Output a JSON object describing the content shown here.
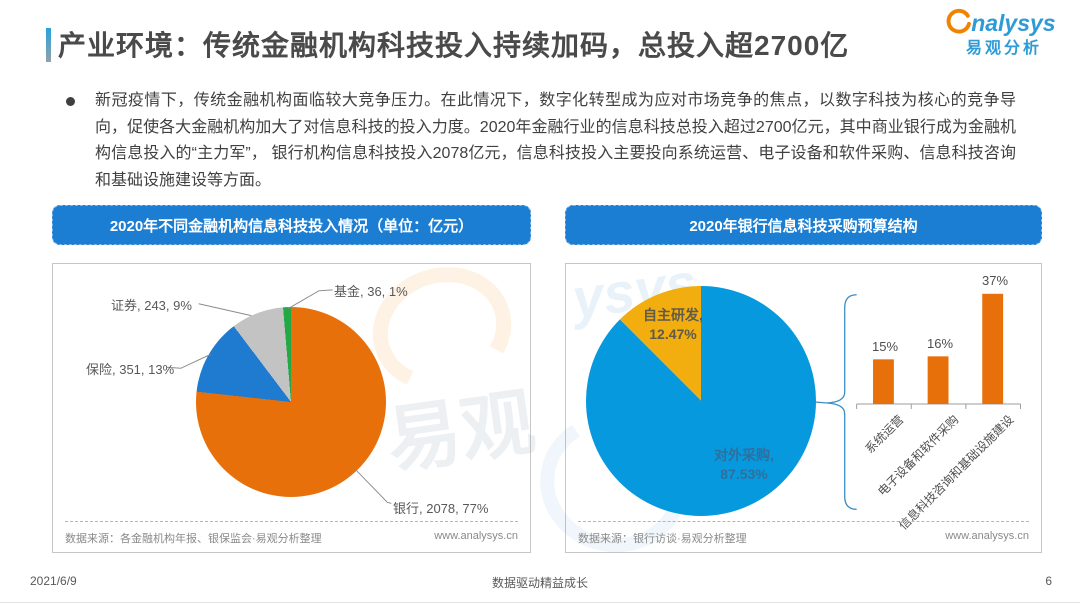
{
  "page": {
    "title": "产业环境：传统金融机构科技投入持续加码，总投入超2700亿",
    "logo": {
      "brand": "analysys",
      "brand_cn": "易观分析"
    },
    "bullet_text": "新冠疫情下，传统金融机构面临较大竞争压力。在此情况下，数字化转型成为应对市场竞争的焦点，以数字科技为核心的竞争导向，促使各大金融机构加大了对信息科技的投入力度。2020年金融行业的信息科技总投入超过2700亿元，其中商业银行成为金融机构信息投入的“主力军”， 银行机构信息科技投入2078亿元，信息科技投入主要投向系统运营、电子设备和软件采购、信息科技咨询和基础设施建设等方面。",
    "footer": {
      "date": "2021/6/9",
      "slogan": "数据驱动精益成长",
      "page_number": "6"
    },
    "watermark": {
      "left_panel": "易观",
      "right_panel": "ysys"
    }
  },
  "left_chart": {
    "header": "2020年不同金融机构信息科技投入情况（单位：亿元）",
    "source": "数据来源：各金融机构年报、银保监会·易观分析整理",
    "url": "www.analysys.cn",
    "labels": {
      "bank": "银行, 2078, 77%",
      "insurance": "保险, 351, 13%",
      "securities": "证券, 243, 9%",
      "fund": "基金, 36, 1%"
    }
  },
  "right_chart": {
    "header": "2020年银行信息科技采购预算结构",
    "source": "数据来源：银行访谈·易观分析整理",
    "url": "www.analysys.cn",
    "pie_labels": {
      "outsourced_name": "对外采购,",
      "outsourced_pct": "87.53%",
      "inhouse_name": "自主研发,",
      "inhouse_pct": "12.47%"
    },
    "bar_value_labels": [
      "15%",
      "16%",
      "37%"
    ],
    "bar_categories": [
      "系统运营",
      "电子设备和软件采购",
      "信息科技咨询和基础设施建设"
    ]
  },
  "chart_data": [
    {
      "type": "pie",
      "title": "2020年不同金融机构信息科技投入情况",
      "unit": "亿元",
      "labels": [
        "银行",
        "保险",
        "证券",
        "基金"
      ],
      "values": [
        2078,
        351,
        243,
        36
      ],
      "percents": [
        77,
        13,
        9,
        1
      ],
      "colors": [
        "#E8700A",
        "#1E7BD0",
        "#C3C3C3",
        "#22A845"
      ],
      "start_angle_deg": 0,
      "direction": "clockwise",
      "data_labels": "名称, 数值, 百分比（带引导线）",
      "legend_position": "none"
    },
    {
      "type": "pie",
      "title": "2020年银行信息科技采购预算结构",
      "labels": [
        "对外采购",
        "自主研发"
      ],
      "values": [
        87.53,
        12.47
      ],
      "unit": "%",
      "colors": [
        "#0699DD",
        "#F2AE0E"
      ],
      "start_angle_deg": 0,
      "direction": "clockwise",
      "legend_position": "none"
    },
    {
      "type": "bar",
      "title": "对外采购预算构成（占比）",
      "categories": [
        "系统运营",
        "电子设备和软件采购",
        "信息科技咨询和基础设施建设"
      ],
      "values": [
        15,
        16,
        37
      ],
      "unit": "%",
      "bar_color": "#E8700A",
      "ylim": [
        0,
        40
      ],
      "data_labels": true,
      "grid": false,
      "category_label_rotation_deg": 45
    }
  ]
}
